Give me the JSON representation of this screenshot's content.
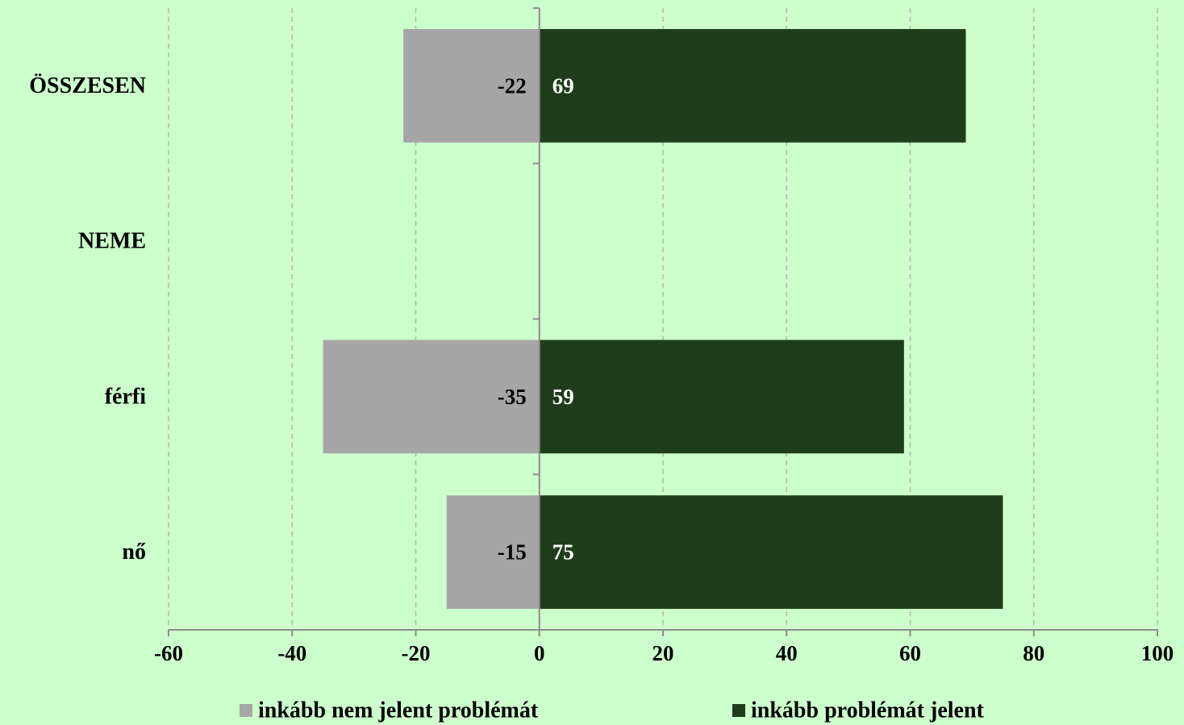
{
  "chart_data": {
    "type": "bar",
    "orientation": "horizontal",
    "stacked": "diverging",
    "categories": [
      "ÖSSZESEN",
      "NEME",
      "férfi",
      "nő"
    ],
    "series": [
      {
        "name": "inkább nem jelent problémát",
        "values": [
          -22,
          null,
          -35,
          -15
        ],
        "color": "#a6a6a6",
        "label_color": "#000000"
      },
      {
        "name": "inkább problémát jelent",
        "values": [
          69,
          null,
          59,
          75
        ],
        "color": "#1f3d1a",
        "label_color": "#ffffff"
      }
    ],
    "xlim": [
      -60,
      100
    ],
    "xticks": [
      -60,
      -40,
      -20,
      0,
      20,
      40,
      60,
      80,
      100
    ],
    "xtick_labels": [
      "-60",
      "-40",
      "-20",
      "0",
      "20",
      "40",
      "60",
      "80",
      "100"
    ],
    "grid": true,
    "legend_position": "bottom",
    "background_color": "#ccffcc",
    "title": "",
    "xlabel": "",
    "ylabel": ""
  }
}
